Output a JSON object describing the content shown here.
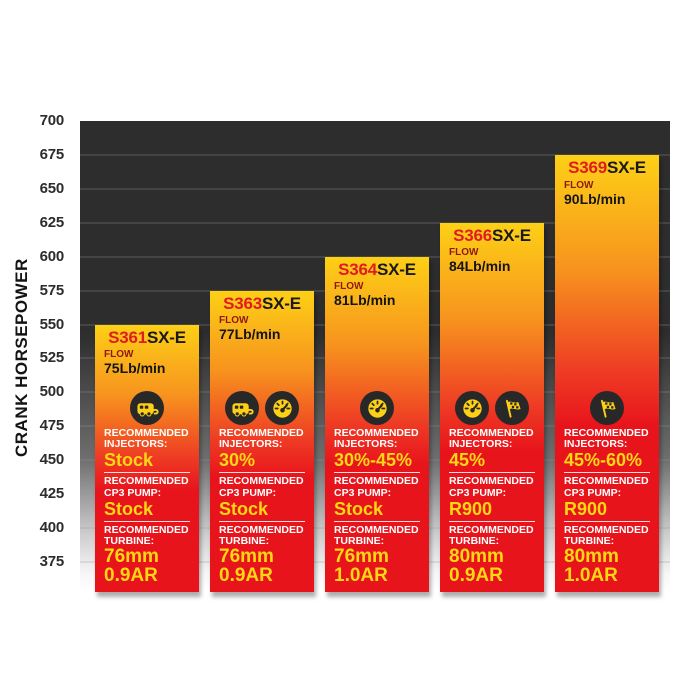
{
  "y_axis": {
    "label": "CRANK HORSEPOWER",
    "ticks": [
      700,
      675,
      650,
      625,
      600,
      575,
      550,
      525,
      500,
      475,
      450,
      425,
      400,
      375
    ]
  },
  "labels": {
    "flow": "FLOW",
    "recommended": "RECOMMENDED",
    "injectors": "INJECTORS:",
    "cp3_pump": "CP3 PUMP:",
    "turbine": "TURBINE:"
  },
  "colors": {
    "plot_dark": "#2d2d2d",
    "bar_yellow_top": "#fdd016",
    "bar_red_bottom": "#e8141c",
    "model_red": "#e11b22",
    "value_yellow": "#ffd713",
    "label_white": "#ffffff",
    "icon_circle_dark": "#282828"
  },
  "chart_data": {
    "type": "bar",
    "title": "",
    "xlabel": "",
    "ylabel": "CRANK HORSEPOWER",
    "ylim": [
      375,
      700
    ],
    "grid_step": 25,
    "legend": "none",
    "categories": [
      "S361SX-E",
      "S363SX-E",
      "S364SX-E",
      "S366SX-E",
      "S369SX-E"
    ],
    "values": [
      550,
      575,
      600,
      625,
      675
    ],
    "bars": [
      {
        "model": "S361",
        "suffix": "SX-E",
        "crank_hp": 550,
        "flow": "75Lb/min",
        "icons": [
          "rv-icon"
        ],
        "injectors": "Stock",
        "cp3_pump": "Stock",
        "turbine": [
          "76mm",
          "0.9AR"
        ]
      },
      {
        "model": "S363",
        "suffix": "SX-E",
        "crank_hp": 575,
        "flow": "77Lb/min",
        "icons": [
          "rv-icon",
          "gauge-icon"
        ],
        "injectors": "30%",
        "cp3_pump": "Stock",
        "turbine": [
          "76mm",
          "0.9AR"
        ]
      },
      {
        "model": "S364",
        "suffix": "SX-E",
        "crank_hp": 600,
        "flow": "81Lb/min",
        "icons": [
          "gauge-icon"
        ],
        "injectors": "30%-45%",
        "cp3_pump": "Stock",
        "turbine": [
          "76mm",
          "1.0AR"
        ]
      },
      {
        "model": "S366",
        "suffix": "SX-E",
        "crank_hp": 625,
        "flow": "84Lb/min",
        "icons": [
          "gauge-icon",
          "flag-icon"
        ],
        "injectors": "45%",
        "cp3_pump": "R900",
        "turbine": [
          "80mm",
          "0.9AR"
        ]
      },
      {
        "model": "S369",
        "suffix": "SX-E",
        "crank_hp": 675,
        "flow": "90Lb/min",
        "icons": [
          "flag-icon"
        ],
        "injectors": "45%-60%",
        "cp3_pump": "R900",
        "turbine": [
          "80mm",
          "1.0AR"
        ]
      }
    ]
  }
}
